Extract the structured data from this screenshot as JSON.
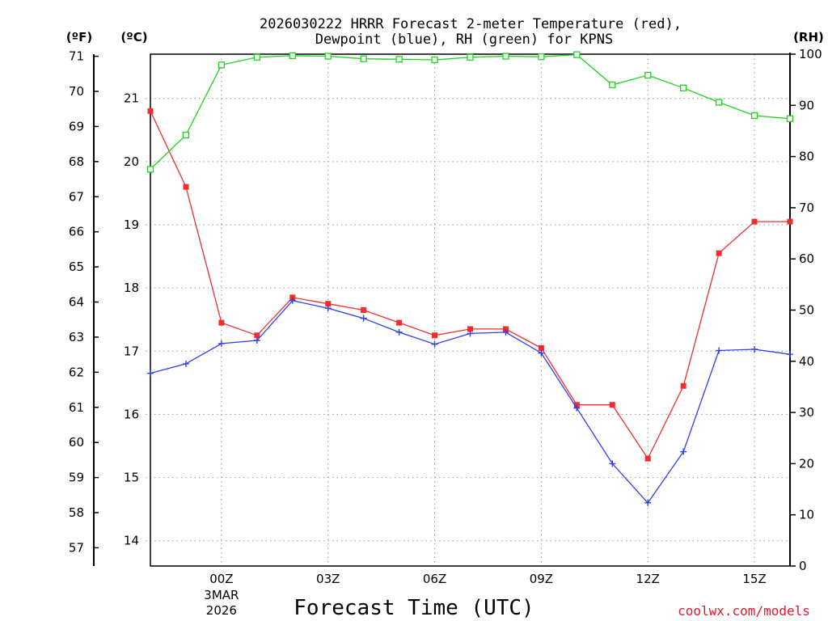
{
  "chart_data": {
    "type": "line",
    "title_line1": "2026030222 HRRR Forecast 2-meter Temperature (red),",
    "title_line2": "Dewpoint (blue), RH (green) for KPNS",
    "xlabel": "Forecast Time (UTC)",
    "credit": "coolwx.com/models",
    "units": {
      "fahrenheit": "(ºF)",
      "celsius": "(ºC)",
      "rh": "(RH)"
    },
    "x": [
      -2,
      -1,
      0,
      1,
      2,
      3,
      4,
      5,
      6,
      7,
      8,
      9,
      10,
      11,
      12,
      13,
      14,
      15,
      16
    ],
    "xlim": [
      -2,
      16
    ],
    "x_ticks": [
      {
        "x": 0,
        "label": "00Z",
        "sub1": "3MAR",
        "sub2": "2026"
      },
      {
        "x": 3,
        "label": "03Z"
      },
      {
        "x": 6,
        "label": "06Z"
      },
      {
        "x": 9,
        "label": "09Z"
      },
      {
        "x": 12,
        "label": "12Z"
      },
      {
        "x": 15,
        "label": "15Z"
      }
    ],
    "y_celsius": {
      "lim": [
        13.6,
        21.7
      ],
      "ticks": [
        "14",
        "15",
        "16",
        "17",
        "18",
        "19",
        "20",
        "21"
      ]
    },
    "y_fahrenheit": {
      "lim": [
        56.48,
        71.06
      ],
      "ticks": [
        "57",
        "58",
        "59",
        "60",
        "61",
        "62",
        "63",
        "64",
        "65",
        "66",
        "67",
        "68",
        "69",
        "70",
        "71"
      ]
    },
    "y_rh": {
      "lim": [
        0,
        100
      ],
      "ticks": [
        "0",
        "10",
        "20",
        "30",
        "40",
        "50",
        "60",
        "70",
        "80",
        "90",
        "100"
      ]
    },
    "series": [
      {
        "name": "Temperature (°C)",
        "color": "#ef2f2f",
        "axis": "celsius",
        "marker": "filled-square",
        "values": [
          20.8,
          19.6,
          17.45,
          17.25,
          17.85,
          17.75,
          17.65,
          17.45,
          17.25,
          17.35,
          17.35,
          17.05,
          16.15,
          16.15,
          15.3,
          16.45,
          18.55,
          19.05,
          19.05
        ]
      },
      {
        "name": "Dewpoint (°C)",
        "color": "#2f3fef",
        "axis": "celsius",
        "marker": "plus",
        "values": [
          16.65,
          16.8,
          17.12,
          17.17,
          17.8,
          17.68,
          17.52,
          17.3,
          17.11,
          17.28,
          17.3,
          16.97,
          16.1,
          15.22,
          14.6,
          15.41,
          17.01,
          17.03,
          16.95
        ]
      },
      {
        "name": "RH (%)",
        "color": "#1ed31e",
        "axis": "rh",
        "marker": "open-square",
        "values": [
          77.5,
          84.2,
          97.9,
          99.4,
          99.7,
          99.6,
          99.1,
          99.0,
          98.9,
          99.4,
          99.6,
          99.5,
          99.9,
          94.0,
          95.9,
          93.4,
          90.6,
          88.0,
          87.4
        ]
      }
    ]
  }
}
